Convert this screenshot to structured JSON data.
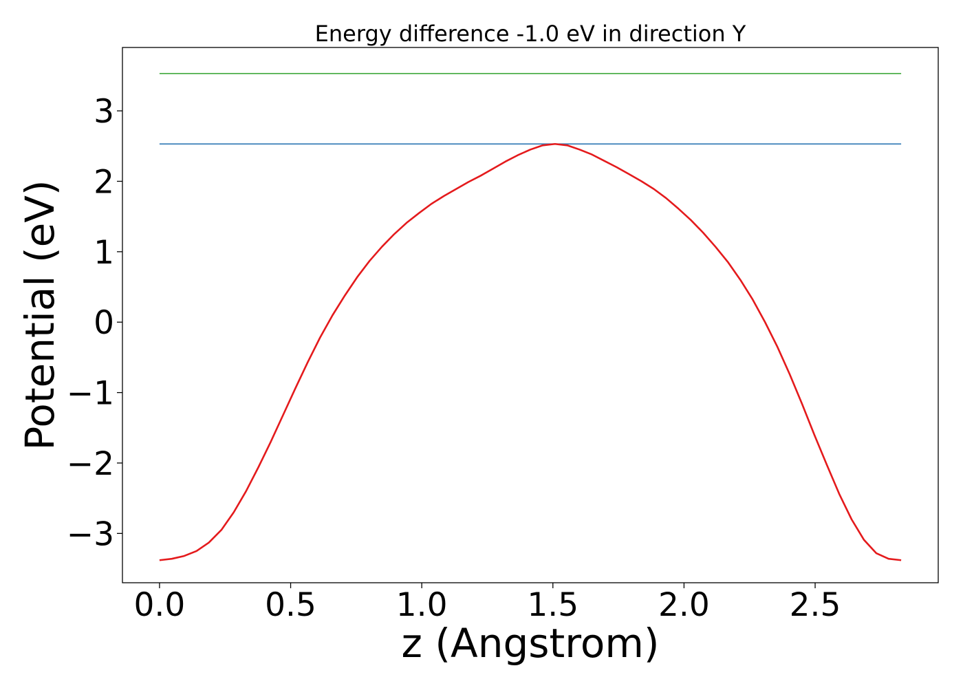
{
  "chart_data": {
    "type": "line",
    "title": "Energy difference -1.0 eV in direction Y",
    "xlabel": "z (Angstrom)",
    "ylabel": "Potential (eV)",
    "xlim": [
      -0.1414,
      2.9694
    ],
    "ylim": [
      -3.7,
      3.9
    ],
    "x_ticks": [
      0.0,
      0.5,
      1.0,
      1.5,
      2.0,
      2.5
    ],
    "x_tick_labels": [
      "0.0",
      "0.5",
      "1.0",
      "1.5",
      "2.0",
      "2.5"
    ],
    "y_ticks": [
      -3,
      -2,
      -1,
      0,
      1,
      2,
      3
    ],
    "y_tick_labels": [
      "−3",
      "−2",
      "−1",
      "0",
      "1",
      "2",
      "3"
    ],
    "grid": false,
    "legend": "none",
    "series": [
      {
        "color": "#e41a1c",
        "x": [
          0.0,
          0.047,
          0.094,
          0.141,
          0.188,
          0.236,
          0.283,
          0.33,
          0.377,
          0.424,
          0.471,
          0.518,
          0.565,
          0.612,
          0.66,
          0.707,
          0.754,
          0.801,
          0.848,
          0.895,
          0.942,
          0.99,
          1.037,
          1.084,
          1.131,
          1.178,
          1.225,
          1.272,
          1.319,
          1.366,
          1.414,
          1.461,
          1.508,
          1.555,
          1.602,
          1.649,
          1.696,
          1.743,
          1.791,
          1.838,
          1.885,
          1.932,
          1.979,
          2.026,
          2.073,
          2.12,
          2.168,
          2.215,
          2.262,
          2.309,
          2.356,
          2.403,
          2.45,
          2.497,
          2.545,
          2.592,
          2.639,
          2.686,
          2.733,
          2.78,
          2.828
        ],
        "values": [
          -3.38,
          -3.36,
          -3.32,
          -3.25,
          -3.13,
          -2.95,
          -2.7,
          -2.4,
          -2.06,
          -1.7,
          -1.32,
          -0.94,
          -0.57,
          -0.22,
          0.1,
          0.38,
          0.64,
          0.87,
          1.07,
          1.25,
          1.41,
          1.55,
          1.68,
          1.79,
          1.89,
          1.99,
          2.08,
          2.18,
          2.28,
          2.37,
          2.45,
          2.51,
          2.53,
          2.51,
          2.45,
          2.38,
          2.29,
          2.2,
          2.1,
          2.0,
          1.89,
          1.76,
          1.61,
          1.45,
          1.27,
          1.07,
          0.85,
          0.6,
          0.32,
          0.0,
          -0.35,
          -0.74,
          -1.16,
          -1.6,
          -2.03,
          -2.44,
          -2.8,
          -3.09,
          -3.28,
          -3.36,
          -3.38
        ]
      },
      {
        "color": "#377eb8",
        "x": [
          0.0,
          2.828
        ],
        "values": [
          2.53,
          2.53
        ]
      },
      {
        "color": "#4daf4a",
        "x": [
          0.0,
          2.828
        ],
        "values": [
          3.53,
          3.53
        ]
      }
    ]
  }
}
